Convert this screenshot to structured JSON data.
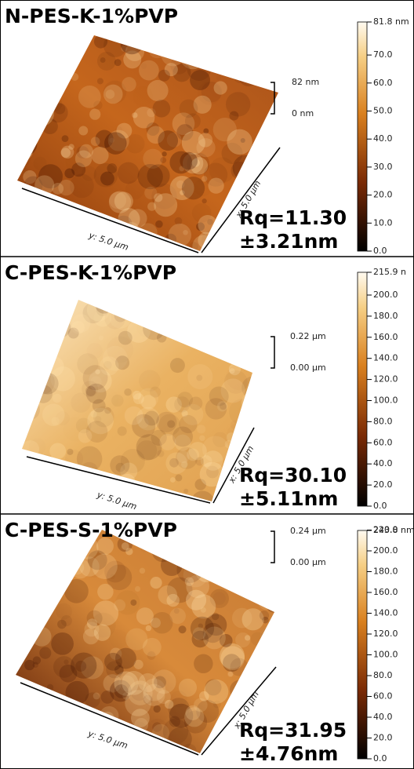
{
  "panels": [
    {
      "title": "N-PES-K-1%PVP",
      "scale_top": "82 nm",
      "scale_bottom": "0 nm",
      "y_axis": "y: 5.0 µm",
      "x_axis": "x: 5.0 µm",
      "rq_line1": "Rq=11.30",
      "rq_line2": "±3.21nm",
      "colorbar": {
        "max": "81.8 nm",
        "ticks": [
          "0.0",
          "10.0",
          "20.0",
          "30.0",
          "40.0",
          "50.0",
          "60.0",
          "70.0"
        ]
      }
    },
    {
      "title": "C-PES-K-1%PVP",
      "scale_top": "0.22 µm",
      "scale_bottom": "0.00 µm",
      "y_axis": "y: 5.0 µm",
      "x_axis": "x: 5.0 µm",
      "rq_line1": "Rq=30.10",
      "rq_line2": "±5.11nm",
      "colorbar": {
        "max": "215.9 n",
        "ticks": [
          "0.0",
          "20.0",
          "40.0",
          "60.0",
          "80.0",
          "100.0",
          "120.0",
          "140.0",
          "160.0",
          "180.0",
          "200.0"
        ]
      }
    },
    {
      "title": "C-PES-S-1%PVP",
      "scale_top": "0.24 µm",
      "scale_bottom": "0.00 µm",
      "y_axis": "y: 5.0 µm",
      "x_axis": "x: 5.0 µm",
      "rq_line1": "Rq=31.95",
      "rq_line2": "±4.76nm",
      "colorbar": {
        "max": "243.8 nm",
        "ticks": [
          "0.0",
          "20.0",
          "40.0",
          "60.0",
          "80.0",
          "100.0",
          "120.0",
          "140.0",
          "160.0",
          "180.0",
          "200.0",
          "220.0"
        ]
      }
    }
  ]
}
